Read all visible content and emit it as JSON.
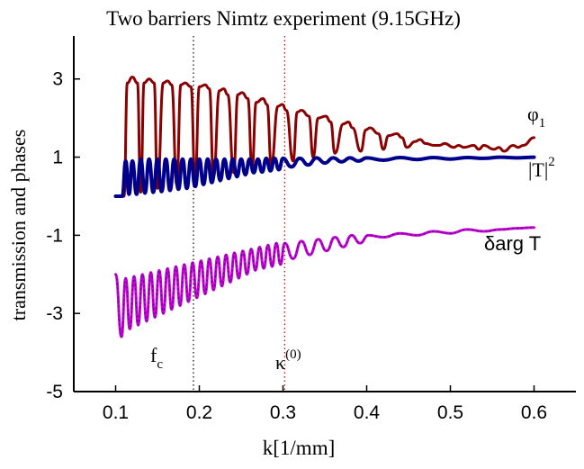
{
  "chart_data": {
    "type": "line",
    "title": "Two barriers Nimtz experiment (9.15GHz)",
    "xlabel": "k[1/mm]",
    "ylabel": "transmission and phases",
    "xlim": [
      0.05,
      0.65
    ],
    "ylim": [
      -5,
      4.1
    ],
    "x_ticks": [
      "0.1",
      "0.2",
      "0.3",
      "0.4",
      "0.5",
      "0.6"
    ],
    "y_ticks": [
      "3",
      "1",
      "-1",
      "-3",
      "-5"
    ],
    "grid": false,
    "series": [
      {
        "name": "φ1",
        "color": "#8b0000",
        "x": [
          0.1,
          0.11,
          0.114,
          0.12,
          0.126,
          0.13,
          0.134,
          0.14,
          0.146,
          0.15,
          0.157,
          0.162,
          0.167,
          0.173,
          0.178,
          0.183,
          0.19,
          0.195,
          0.2,
          0.207,
          0.212,
          0.217,
          0.224,
          0.229,
          0.234,
          0.241,
          0.246,
          0.251,
          0.258,
          0.263,
          0.268,
          0.276,
          0.281,
          0.286,
          0.294,
          0.299,
          0.304,
          0.312,
          0.317,
          0.322,
          0.331,
          0.336,
          0.342,
          0.351,
          0.357,
          0.362,
          0.372,
          0.378,
          0.383,
          0.393,
          0.399,
          0.404,
          0.414,
          0.42,
          0.426,
          0.436,
          0.442,
          0.448,
          0.458,
          0.464,
          0.47,
          0.481,
          0.487,
          0.493,
          0.504,
          0.51,
          0.516,
          0.528,
          0.534,
          0.54,
          0.552,
          0.558,
          0.564,
          0.575,
          0.581,
          0.587,
          0.6
        ],
        "y": [
          0.0,
          0.0,
          2.9,
          3.05,
          2.9,
          0.1,
          2.9,
          3.0,
          2.9,
          0.2,
          2.9,
          2.95,
          2.85,
          0.3,
          2.85,
          2.9,
          2.8,
          0.4,
          2.8,
          2.85,
          2.75,
          0.5,
          2.7,
          2.75,
          2.6,
          0.6,
          2.6,
          2.65,
          2.5,
          0.7,
          2.4,
          2.5,
          2.35,
          0.8,
          2.3,
          2.35,
          2.2,
          0.9,
          2.15,
          2.2,
          2.05,
          1.0,
          2.0,
          2.05,
          1.9,
          1.1,
          1.85,
          1.9,
          1.75,
          1.15,
          1.7,
          1.75,
          1.6,
          1.2,
          1.55,
          1.6,
          1.5,
          1.25,
          1.4,
          1.45,
          1.35,
          1.3,
          1.3,
          1.35,
          1.25,
          1.3,
          1.25,
          1.3,
          1.2,
          1.3,
          1.2,
          1.25,
          1.15,
          1.3,
          1.25,
          1.3,
          1.5
        ]
      },
      {
        "name": "|T|²",
        "color": "#00008b",
        "x": [
          0.1,
          0.108,
          0.112,
          0.116,
          0.12,
          0.125,
          0.13,
          0.135,
          0.14,
          0.145,
          0.15,
          0.155,
          0.16,
          0.165,
          0.17,
          0.175,
          0.18,
          0.185,
          0.19,
          0.195,
          0.2,
          0.205,
          0.21,
          0.215,
          0.22,
          0.225,
          0.23,
          0.235,
          0.24,
          0.245,
          0.25,
          0.255,
          0.26,
          0.265,
          0.27,
          0.275,
          0.28,
          0.285,
          0.29,
          0.295,
          0.3,
          0.31,
          0.32,
          0.33,
          0.34,
          0.35,
          0.36,
          0.37,
          0.38,
          0.39,
          0.4,
          0.42,
          0.44,
          0.46,
          0.48,
          0.5,
          0.52,
          0.54,
          0.56,
          0.58,
          0.6
        ],
        "y": [
          0.0,
          0.0,
          0.9,
          0.05,
          0.9,
          0.05,
          0.95,
          0.08,
          0.95,
          0.1,
          0.95,
          0.12,
          0.95,
          0.15,
          0.95,
          0.18,
          0.95,
          0.2,
          0.95,
          0.25,
          0.95,
          0.3,
          0.95,
          0.35,
          0.95,
          0.4,
          0.95,
          0.45,
          0.95,
          0.5,
          0.95,
          0.55,
          0.95,
          0.6,
          0.95,
          0.62,
          0.97,
          0.65,
          0.97,
          0.68,
          0.97,
          0.75,
          0.97,
          0.8,
          0.98,
          0.85,
          0.98,
          0.88,
          0.98,
          0.9,
          0.98,
          0.92,
          0.99,
          0.94,
          0.99,
          0.95,
          0.99,
          0.97,
          1.0,
          0.98,
          1.0
        ]
      },
      {
        "name": "δarg T",
        "color": "#cc00cc",
        "x": [
          0.1,
          0.107,
          0.112,
          0.117,
          0.122,
          0.127,
          0.132,
          0.137,
          0.142,
          0.147,
          0.152,
          0.157,
          0.162,
          0.167,
          0.172,
          0.177,
          0.182,
          0.187,
          0.192,
          0.197,
          0.202,
          0.207,
          0.212,
          0.217,
          0.222,
          0.227,
          0.232,
          0.237,
          0.242,
          0.247,
          0.252,
          0.257,
          0.262,
          0.267,
          0.272,
          0.277,
          0.282,
          0.287,
          0.292,
          0.297,
          0.302,
          0.312,
          0.322,
          0.332,
          0.342,
          0.352,
          0.362,
          0.372,
          0.382,
          0.392,
          0.402,
          0.42,
          0.44,
          0.46,
          0.48,
          0.5,
          0.52,
          0.54,
          0.56,
          0.58,
          0.6
        ],
        "y": [
          -2.0,
          -3.6,
          -2.1,
          -3.4,
          -2.05,
          -3.3,
          -2.0,
          -3.2,
          -1.95,
          -3.1,
          -1.9,
          -3.0,
          -1.85,
          -2.9,
          -1.8,
          -2.8,
          -1.75,
          -2.7,
          -1.7,
          -2.6,
          -1.65,
          -2.5,
          -1.6,
          -2.4,
          -1.55,
          -2.3,
          -1.5,
          -2.2,
          -1.45,
          -2.1,
          -1.4,
          -2.0,
          -1.35,
          -1.9,
          -1.3,
          -1.85,
          -1.25,
          -1.8,
          -1.2,
          -1.75,
          -1.2,
          -1.6,
          -1.15,
          -1.5,
          -1.1,
          -1.4,
          -1.05,
          -1.3,
          -1.0,
          -1.2,
          -1.0,
          -1.05,
          -0.95,
          -1.0,
          -0.9,
          -0.95,
          -0.85,
          -0.9,
          -0.85,
          -0.82,
          -0.8
        ]
      }
    ],
    "vlines": [
      {
        "x": 0.193,
        "label": "f",
        "sub": "c",
        "color": "#000000"
      },
      {
        "x": 0.302,
        "label": "κ",
        "sup": "(0)",
        "color": "#cc0000"
      }
    ],
    "legend": [
      {
        "text": "φ",
        "sub": "1",
        "ref": "phi1"
      },
      {
        "text": "|T|",
        "sup": "2",
        "ref": "T2"
      },
      {
        "text": "δarg T",
        "ref": "dargT"
      }
    ]
  }
}
